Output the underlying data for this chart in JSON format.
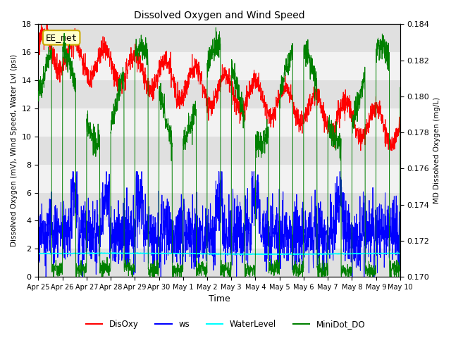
{
  "title": "Dissolved Oxygen and Wind Speed",
  "ylabel_left": "Dissolved Oxygen (mV), Wind Speed, Water Lvl (psi)",
  "ylabel_right": "MD Dissolved Oxygen (mg/L)",
  "xlabel": "Time",
  "ylim_left": [
    0,
    18
  ],
  "ylim_right": [
    0.17,
    0.184
  ],
  "annotation": "EE_met",
  "legend": [
    "DisOxy",
    "ws",
    "WaterLevel",
    "MiniDot_DO"
  ],
  "legend_colors": [
    "red",
    "blue",
    "cyan",
    "green"
  ],
  "background_color": "#ffffff",
  "plot_bg_color": "#e0e0e0",
  "xtick_labels": [
    "Apr 25",
    "Apr 26",
    "Apr 27",
    "Apr 28",
    "Apr 29",
    "Apr 30",
    "May 1",
    "May 2",
    "May 3",
    "May 4",
    "May 5",
    "May 6",
    "May 7",
    "May 8",
    "May 9",
    "May 10"
  ],
  "yticks_left": [
    0,
    2,
    4,
    6,
    8,
    10,
    12,
    14,
    16,
    18
  ],
  "yticks_right": [
    0.17,
    0.172,
    0.174,
    0.176,
    0.178,
    0.18,
    0.182,
    0.184
  ]
}
